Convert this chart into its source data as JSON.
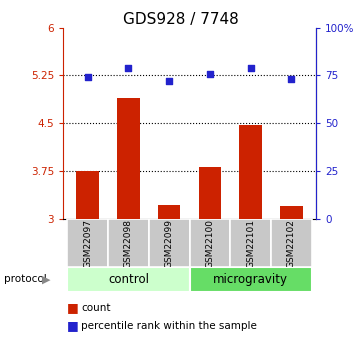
{
  "title": "GDS928 / 7748",
  "samples": [
    "GSM22097",
    "GSM22098",
    "GSM22099",
    "GSM22100",
    "GSM22101",
    "GSM22102"
  ],
  "bar_values": [
    3.75,
    4.9,
    3.22,
    3.82,
    4.47,
    3.2
  ],
  "dot_values": [
    74,
    79,
    72,
    76,
    79,
    73
  ],
  "ylim_left": [
    3,
    6
  ],
  "ylim_right": [
    0,
    100
  ],
  "yticks_left": [
    3,
    3.75,
    4.5,
    5.25,
    6
  ],
  "yticks_right": [
    0,
    25,
    50,
    75,
    100
  ],
  "ytick_labels_left": [
    "3",
    "3.75",
    "4.5",
    "5.25",
    "6"
  ],
  "ytick_labels_right": [
    "0",
    "25",
    "50",
    "75",
    "100%"
  ],
  "hlines": [
    3.75,
    4.5,
    5.25
  ],
  "bar_color": "#cc2200",
  "dot_color": "#2222cc",
  "bar_bottom": 3,
  "groups": [
    {
      "label": "control",
      "color": "#ccffcc"
    },
    {
      "label": "microgravity",
      "color": "#66dd66"
    }
  ],
  "group_ranges": [
    [
      -0.5,
      2.5
    ],
    [
      2.5,
      5.5
    ]
  ],
  "legend_items": [
    {
      "color": "#cc2200",
      "label": "count"
    },
    {
      "color": "#2222cc",
      "label": "percentile rank within the sample"
    }
  ],
  "title_fontsize": 11,
  "tick_fontsize": 7.5,
  "sample_fontsize": 6.5,
  "label_fontsize": 8.5,
  "legend_fontsize": 7.5
}
